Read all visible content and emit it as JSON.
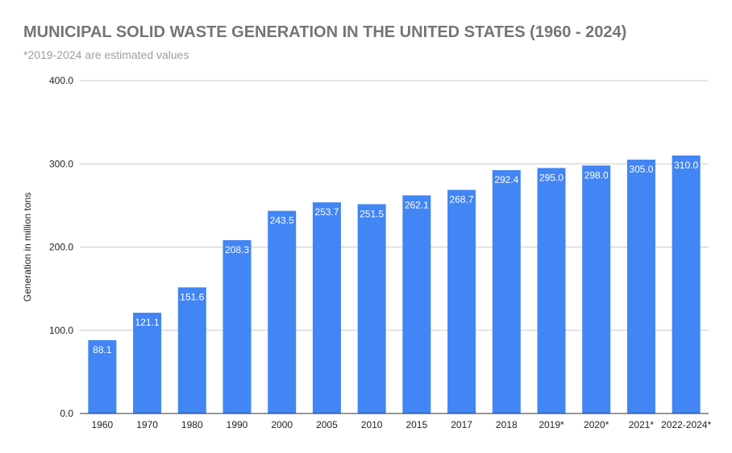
{
  "chart_data": {
    "type": "bar",
    "title": "MUNICIPAL SOLID WASTE GENERATION IN THE UNITED STATES (1960 - 2024)",
    "subtitle": "*2019-2024 are estimated values",
    "xlabel": "",
    "ylabel": "Generation in million tons",
    "ylim": [
      0,
      400
    ],
    "yticks": [
      "0.0",
      "100.0",
      "200.0",
      "300.0",
      "400.0"
    ],
    "grid": true,
    "legend": "none",
    "bar_color": "#4285f4",
    "categories": [
      "1960",
      "1970",
      "1980",
      "1990",
      "2000",
      "2005",
      "2010",
      "2015",
      "2017",
      "2018",
      "2019*",
      "2020*",
      "2021*",
      "2022-2024*"
    ],
    "values": [
      88.1,
      121.1,
      151.6,
      208.3,
      243.5,
      253.7,
      251.5,
      262.1,
      268.7,
      292.4,
      295.0,
      298.0,
      305.0,
      310.0
    ],
    "value_labels": [
      "88.1",
      "121.1",
      "151.6",
      "208.3",
      "243.5",
      "253.7",
      "251.5",
      "262.1",
      "268.7",
      "292.4",
      "295.0",
      "298.0",
      "305.0",
      "310.0"
    ]
  }
}
